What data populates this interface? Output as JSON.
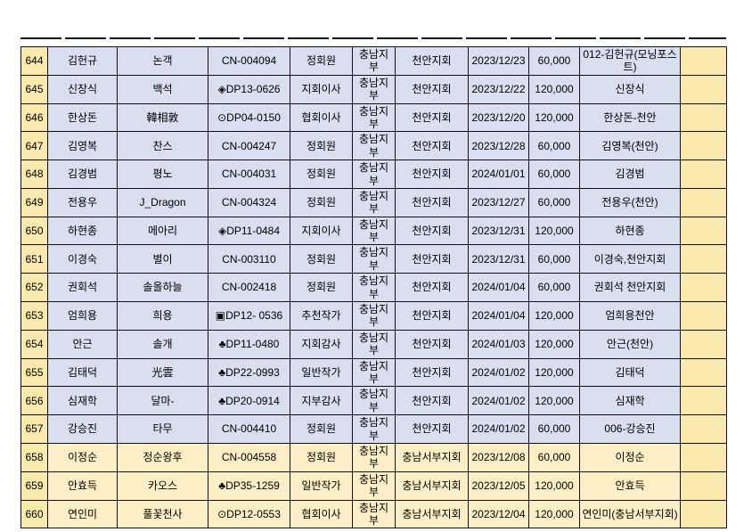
{
  "page": {
    "background_color": "#ffffff",
    "description": "membership fee ledger table rows 644-660"
  },
  "table": {
    "colors": {
      "index_column_bg": "#fce9ae",
      "data_row_bg": "#d9def0",
      "highlight_row_bg": "#fdeec5",
      "border": "#111111"
    },
    "rows": [
      {
        "no": "644",
        "name": "김헌규",
        "pen_name": "논객",
        "code": "CN-004094",
        "grade": "정회원",
        "branch": "충남지부",
        "chapter": "천안지회",
        "date": "2023/12/23",
        "amount": "60,000",
        "note": "012-김헌규(모닝포스트)",
        "blank": "",
        "theme": "blue"
      },
      {
        "no": "645",
        "name": "신장식",
        "pen_name": "백석",
        "code": "◈DP13-0626",
        "grade": "지회이사",
        "branch": "충남지부",
        "chapter": "천안지회",
        "date": "2023/12/22",
        "amount": "120,000",
        "note": "신장식",
        "blank": "",
        "theme": "blue"
      },
      {
        "no": "646",
        "name": "한상돈",
        "pen_name": "韓相敦",
        "code": "⊙DP04-0150",
        "grade": "협회이사",
        "branch": "충남지부",
        "chapter": "천안지회",
        "date": "2023/12/20",
        "amount": "120,000",
        "note": "한상돈-천안",
        "blank": "",
        "theme": "blue"
      },
      {
        "no": "647",
        "name": "김영복",
        "pen_name": "찬스",
        "code": "CN-004247",
        "grade": "정회원",
        "branch": "충남지부",
        "chapter": "천안지회",
        "date": "2023/12/28",
        "amount": "60,000",
        "note": "김영복(천안)",
        "blank": "",
        "theme": "blue"
      },
      {
        "no": "648",
        "name": "김경범",
        "pen_name": "평노",
        "code": "CN-004031",
        "grade": "정회원",
        "branch": "충남지부",
        "chapter": "천안지회",
        "date": "2024/01/01",
        "amount": "60,000",
        "note": "김경범",
        "blank": "",
        "theme": "blue"
      },
      {
        "no": "649",
        "name": "전용우",
        "pen_name": "J_Dragon",
        "code": "CN-004324",
        "grade": "정회원",
        "branch": "충남지부",
        "chapter": "천안지회",
        "date": "2023/12/27",
        "amount": "60,000",
        "note": "전용우(천안)",
        "blank": "",
        "theme": "blue"
      },
      {
        "no": "650",
        "name": "하현종",
        "pen_name": "메아리",
        "code": "◈DP11-0484",
        "grade": "지회이사",
        "branch": "충남지부",
        "chapter": "천안지회",
        "date": "2023/12/31",
        "amount": "120,000",
        "note": "하현종",
        "blank": "",
        "theme": "blue"
      },
      {
        "no": "651",
        "name": "이경숙",
        "pen_name": "별이",
        "code": "CN-003110",
        "grade": "정회원",
        "branch": "충남지부",
        "chapter": "천안지회",
        "date": "2023/12/31",
        "amount": "60,000",
        "note": "이경숙,천안지회",
        "blank": "",
        "theme": "blue"
      },
      {
        "no": "652",
        "name": "권회석",
        "pen_name": "솔올하늘",
        "code": "CN-002418",
        "grade": "정회원",
        "branch": "충남지부",
        "chapter": "천안지회",
        "date": "2024/01/04",
        "amount": "60,000",
        "note": "권회석 천안지회",
        "blank": "",
        "theme": "blue"
      },
      {
        "no": "653",
        "name": "엄희용",
        "pen_name": "희용",
        "code": "▣DP12- 0536",
        "grade": "추천작가",
        "branch": "충남지부",
        "chapter": "천안지회",
        "date": "2024/01/04",
        "amount": "120,000",
        "note": "엄희용천안",
        "blank": "",
        "theme": "blue"
      },
      {
        "no": "654",
        "name": "안근",
        "pen_name": "솔개",
        "code": "♣DP11-0480",
        "grade": "지회감사",
        "branch": "충남지부",
        "chapter": "천안지회",
        "date": "2024/01/03",
        "amount": "120,000",
        "note": "안근(천안)",
        "blank": "",
        "theme": "blue"
      },
      {
        "no": "655",
        "name": "김태덕",
        "pen_name": "光雲",
        "code": "♣DP22-0993",
        "grade": "일반작가",
        "branch": "충남지부",
        "chapter": "천안지회",
        "date": "2024/01/02",
        "amount": "120,000",
        "note": "김태덕",
        "blank": "",
        "theme": "blue"
      },
      {
        "no": "656",
        "name": "심재학",
        "pen_name": "달마-",
        "code": "♣DP20-0914",
        "grade": "지부감사",
        "branch": "충남지부",
        "chapter": "천안지회",
        "date": "2024/01/02",
        "amount": "120,000",
        "note": "심재학",
        "blank": "",
        "theme": "blue"
      },
      {
        "no": "657",
        "name": "강승진",
        "pen_name": "타무",
        "code": "CN-004410",
        "grade": "정회원",
        "branch": "충남지부",
        "chapter": "천안지회",
        "date": "2024/01/02",
        "amount": "60,000",
        "note": "006-강승진",
        "blank": "",
        "theme": "blue"
      },
      {
        "no": "658",
        "name": "이정순",
        "pen_name": "정순왕후",
        "code": "CN-004558",
        "grade": "정회원",
        "branch": "충남지부",
        "chapter": "충남서부지회",
        "date": "2023/12/08",
        "amount": "60,000",
        "note": "이정순",
        "blank": "",
        "theme": "cream"
      },
      {
        "no": "659",
        "name": "안효득",
        "pen_name": "카오스",
        "code": "♣DP35-1259",
        "grade": "일반작가",
        "branch": "충남지부",
        "chapter": "충남서부지회",
        "date": "2023/12/05",
        "amount": "120,000",
        "note": "안효득",
        "blank": "",
        "theme": "cream"
      },
      {
        "no": "660",
        "name": "연인미",
        "pen_name": "풀꽃천사",
        "code": "⊙DP12-0553",
        "grade": "협회이사",
        "branch": "충남지부",
        "chapter": "충남서부지회",
        "date": "2023/12/04",
        "amount": "120,000",
        "note": "연인미(충남서부지회)",
        "blank": "",
        "theme": "cream"
      }
    ]
  }
}
